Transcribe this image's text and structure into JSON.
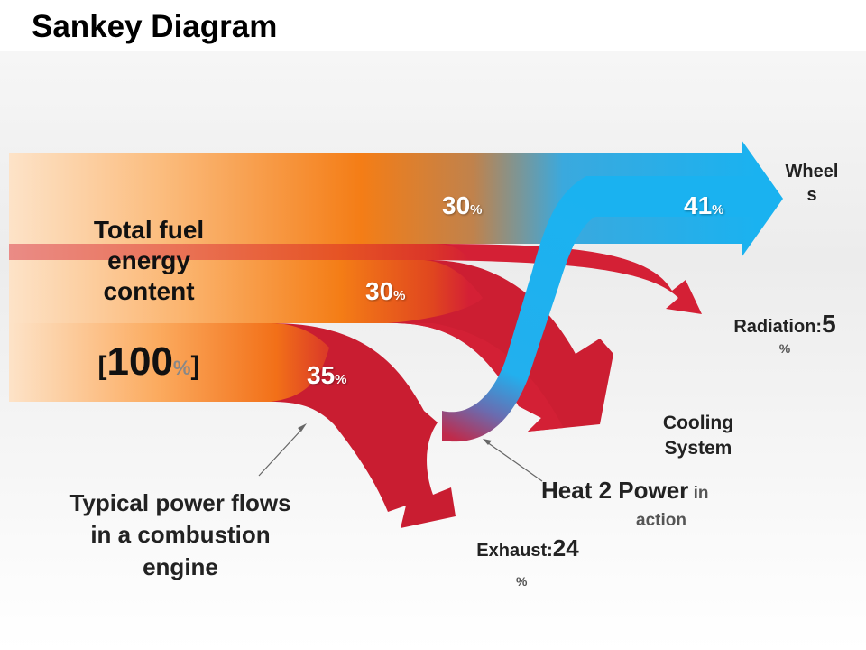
{
  "title": "Sankey Diagram",
  "source": {
    "line1": "Total fuel",
    "line2": "energy",
    "line3": "content",
    "bracket_open": "[",
    "value": "100",
    "unit": "%",
    "bracket_close": "]"
  },
  "flows": [
    {
      "name_line1": "Wheel",
      "name_line2": "s",
      "value": "30",
      "unit": "%",
      "color": "#1ab2f0"
    },
    {
      "name_prefix": "Radiation:",
      "value": "30",
      "unit": "%",
      "end_value": "5",
      "end_unit": "%",
      "color": "#d42035"
    },
    {
      "name_line1": "Cooling",
      "name_line2": "System",
      "value": "35",
      "unit": "%",
      "color": "#cc1e32"
    },
    {
      "name_prefix": "Exhaust:",
      "end_value": "24",
      "end_unit": "%",
      "color": "#cc1e32"
    }
  ],
  "heat_to_power": {
    "label": "Heat 2 Power",
    "suffix1": "in",
    "suffix2": "action",
    "value": "41",
    "unit": "%"
  },
  "annotation": {
    "line1": "Typical power flows",
    "line2": "in a combustion",
    "line3": "engine"
  },
  "colors": {
    "source_start": "#fde3c8",
    "source_mid": "#f47d16",
    "wheels": "#1ab2f0",
    "loss": "#cc1e32"
  }
}
